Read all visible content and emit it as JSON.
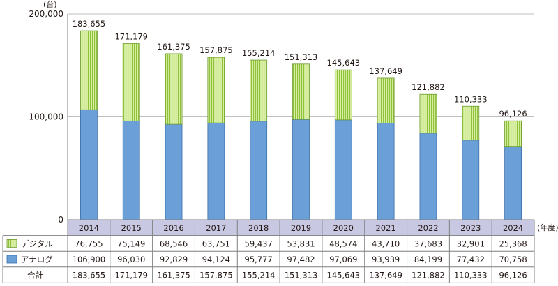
{
  "chart_data": {
    "type": "bar",
    "stacked": true,
    "y_unit_label": "(台)",
    "x_unit_label": "(年度)",
    "categories": [
      "2014",
      "2015",
      "2016",
      "2017",
      "2018",
      "2019",
      "2020",
      "2021",
      "2022",
      "2023",
      "2024"
    ],
    "yticks": [
      "200,000",
      "100,000",
      "0"
    ],
    "ylim": [
      0,
      200000
    ],
    "grid": true,
    "series": [
      {
        "name": "アナログ",
        "color": "#6a9fd8",
        "values": [
          106900,
          96030,
          92829,
          94124,
          95777,
          97482,
          97069,
          93939,
          84199,
          77432,
          70758
        ],
        "labels": [
          "106,900",
          "96,030",
          "92,829",
          "94,124",
          "95,777",
          "97,482",
          "97,069",
          "93,939",
          "84,199",
          "77,432",
          "70,758"
        ]
      },
      {
        "name": "デジタル",
        "color": "#d4ed9e",
        "stripe_color": "#8fc23a",
        "values": [
          76755,
          75149,
          68546,
          63751,
          59437,
          53831,
          48574,
          43710,
          37683,
          32901,
          25368
        ],
        "labels": [
          "76,755",
          "75,149",
          "68,546",
          "63,751",
          "59,437",
          "53,831",
          "48,574",
          "43,710",
          "37,683",
          "32,901",
          "25,368"
        ]
      }
    ],
    "totals": {
      "name": "合計",
      "values": [
        183655,
        171179,
        161375,
        157875,
        155214,
        151313,
        145643,
        137649,
        121882,
        110333,
        96126
      ],
      "labels": [
        "183,655",
        "171,179",
        "161,375",
        "157,875",
        "155,214",
        "151,313",
        "145,643",
        "137,649",
        "121,882",
        "110,333",
        "96,126"
      ]
    }
  }
}
